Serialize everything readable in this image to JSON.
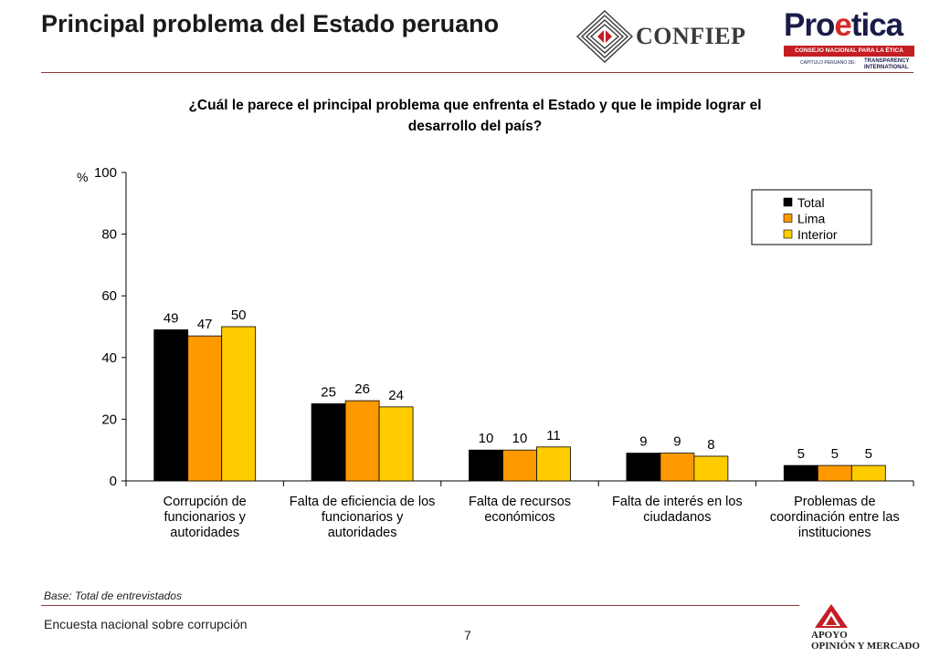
{
  "header": {
    "title": "Principal problema del Estado peruano",
    "logo_confiep_text": "CONFIEP",
    "logo_proetica": {
      "word_pro": "Pro",
      "word_e": "e",
      "word_tica": "tica",
      "subtitle": "CONSEJO NACIONAL PARA LA ÉTICA PÚBLICA",
      "chapter": "CAPÍTULO PERUANO DE:",
      "ti": "TRANSPARENCY INTERNATIONAL"
    }
  },
  "question": "¿Cuál le parece el principal problema que enfrenta el Estado y que le impide lograr el desarrollo del país?",
  "chart_data": {
    "type": "bar",
    "categories": [
      "Corrupción de funcionarios y autoridades",
      "Falta de eficiencia de los funcionarios y autoridades",
      "Falta de recursos económicos",
      "Falta de interés en los ciudadanos",
      "Problemas de coordinación entre las instituciones"
    ],
    "series": [
      {
        "name": "Total",
        "color": "#000000",
        "values": [
          49,
          25,
          10,
          9,
          5
        ]
      },
      {
        "name": "Lima",
        "color": "#ff9900",
        "values": [
          47,
          26,
          10,
          9,
          5
        ]
      },
      {
        "name": "Interior",
        "color": "#ffcc00",
        "values": [
          50,
          24,
          11,
          8,
          5
        ]
      }
    ],
    "ylabel": "%",
    "ylim": [
      0,
      100
    ],
    "yticks": [
      0,
      20,
      40,
      60,
      80,
      100
    ],
    "grid": false,
    "legend_position": "top-right"
  },
  "footer": {
    "base_note": "Base: Total de entrevistados",
    "survey_name": "Encuesta nacional sobre corrupción",
    "page_number": "7",
    "logo_apoyo_line1": "APOYO",
    "logo_apoyo_line2": "OPINIÓN Y MERCADO"
  }
}
